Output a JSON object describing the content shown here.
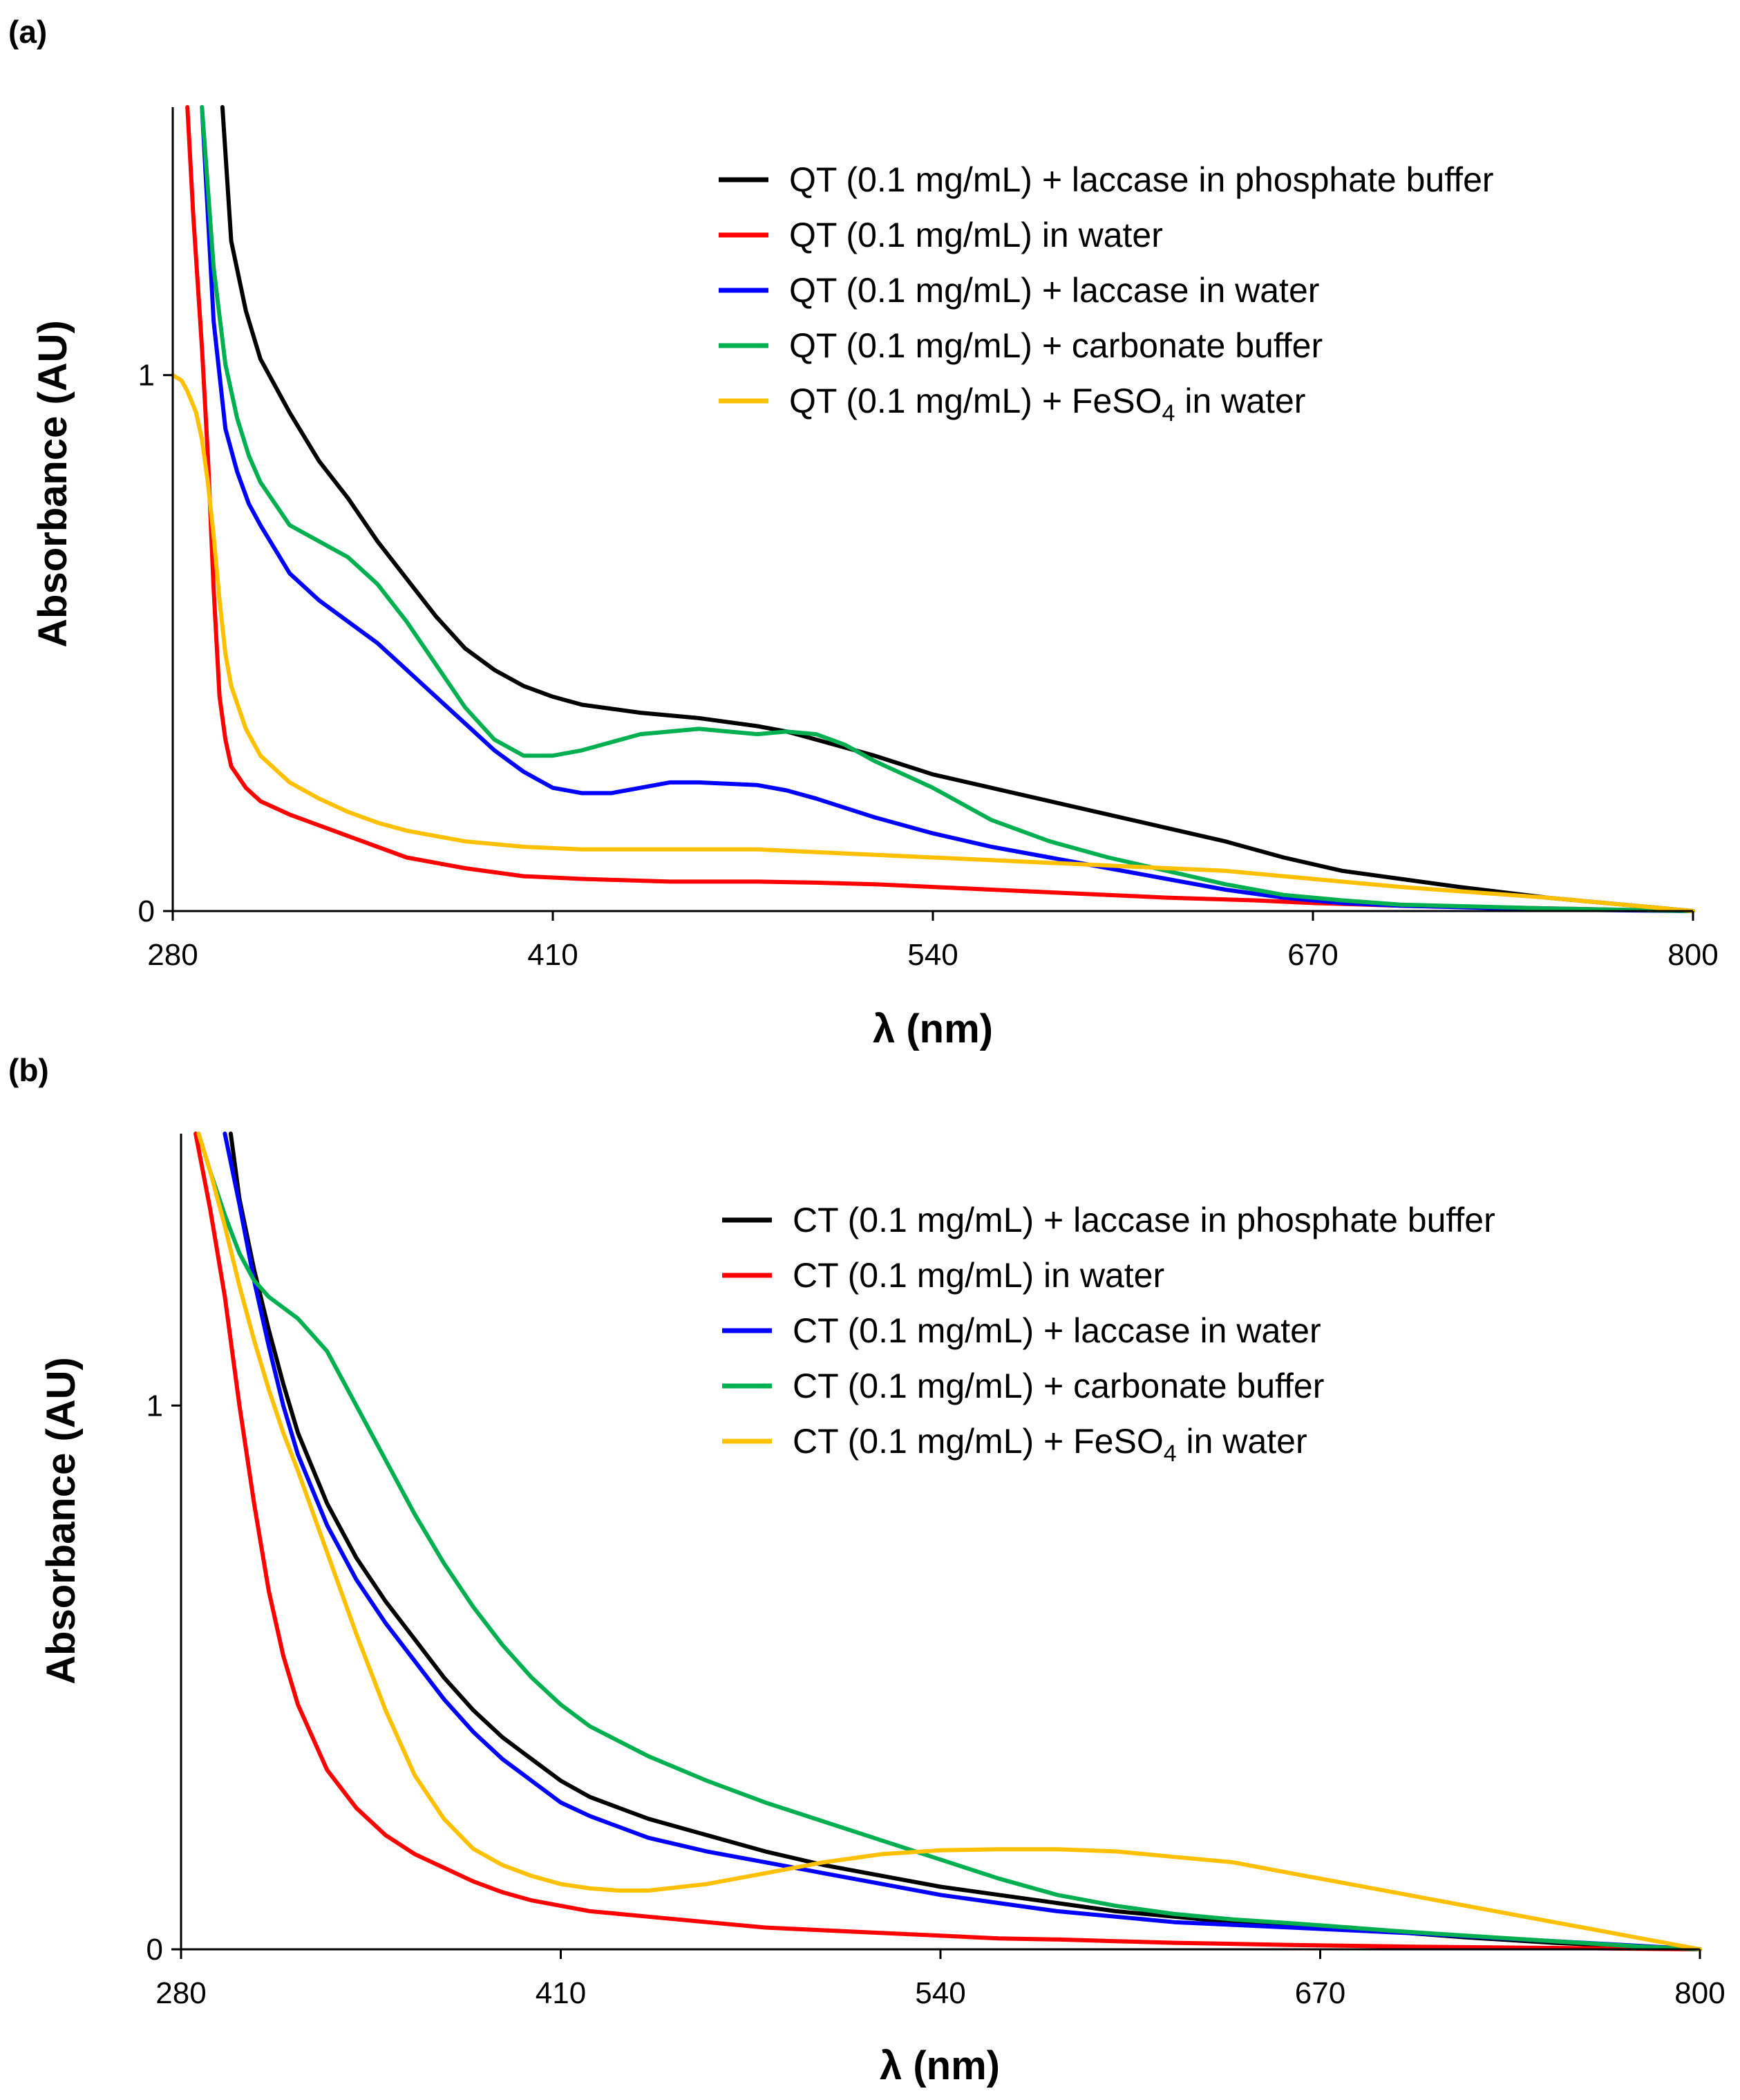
{
  "chart_data": [
    {
      "type": "line",
      "panel": "(a)",
      "xlabel": "λ (nm)",
      "ylabel": "Absorbance (AU)",
      "xlim": [
        280,
        800
      ],
      "ylim": [
        0,
        1.5
      ],
      "xticks": [
        "280",
        "410",
        "540",
        "670",
        "800"
      ],
      "yticks": [
        "0",
        "1"
      ],
      "legend_position": "top-right",
      "series": [
        {
          "name": "QT (0.1 mg/mL) + laccase in phosphate buffer",
          "color": "#000000",
          "x": [
            297,
            300,
            305,
            310,
            320,
            330,
            340,
            350,
            360,
            370,
            380,
            390,
            400,
            410,
            420,
            440,
            460,
            480,
            490,
            500,
            520,
            540,
            560,
            580,
            600,
            620,
            640,
            660,
            680,
            700,
            720,
            750,
            800
          ],
          "y": [
            1.5,
            1.25,
            1.12,
            1.03,
            0.93,
            0.84,
            0.77,
            0.69,
            0.62,
            0.55,
            0.49,
            0.45,
            0.42,
            0.4,
            0.385,
            0.37,
            0.36,
            0.345,
            0.335,
            0.32,
            0.29,
            0.255,
            0.23,
            0.205,
            0.18,
            0.155,
            0.13,
            0.1,
            0.075,
            0.06,
            0.045,
            0.025,
            0.0
          ]
        },
        {
          "name": "QT (0.1 mg/mL) in water",
          "color": "#ff0000",
          "x": [
            285,
            287,
            290,
            292,
            294,
            296,
            298,
            300,
            305,
            310,
            320,
            330,
            340,
            350,
            360,
            380,
            400,
            420,
            450,
            480,
            500,
            520,
            540,
            560,
            580,
            600,
            620,
            650,
            670,
            700,
            800
          ],
          "y": [
            1.5,
            1.3,
            1.05,
            0.85,
            0.6,
            0.4,
            0.32,
            0.27,
            0.23,
            0.205,
            0.18,
            0.16,
            0.14,
            0.12,
            0.1,
            0.08,
            0.065,
            0.06,
            0.055,
            0.055,
            0.053,
            0.05,
            0.045,
            0.04,
            0.035,
            0.03,
            0.025,
            0.02,
            0.015,
            0.01,
            0.0
          ]
        },
        {
          "name": "QT (0.1 mg/mL) + laccase in water",
          "color": "#0000ff",
          "x": [
            290,
            294,
            298,
            302,
            306,
            310,
            320,
            330,
            340,
            350,
            360,
            370,
            380,
            390,
            400,
            410,
            420,
            430,
            440,
            450,
            460,
            480,
            490,
            500,
            520,
            540,
            560,
            580,
            600,
            620,
            640,
            660,
            680,
            700,
            750,
            800
          ],
          "y": [
            1.5,
            1.1,
            0.9,
            0.82,
            0.76,
            0.72,
            0.63,
            0.58,
            0.54,
            0.5,
            0.45,
            0.4,
            0.35,
            0.3,
            0.26,
            0.23,
            0.22,
            0.22,
            0.23,
            0.24,
            0.24,
            0.235,
            0.225,
            0.21,
            0.175,
            0.145,
            0.12,
            0.1,
            0.08,
            0.06,
            0.04,
            0.025,
            0.015,
            0.01,
            0.003,
            0.0
          ]
        },
        {
          "name": "QT (0.1 mg/mL) + carbonate buffer",
          "color": "#00b050",
          "x": [
            290,
            294,
            298,
            302,
            306,
            310,
            320,
            330,
            340,
            350,
            360,
            370,
            380,
            390,
            400,
            410,
            420,
            440,
            460,
            480,
            490,
            500,
            510,
            520,
            540,
            560,
            580,
            600,
            620,
            640,
            660,
            680,
            700,
            750,
            800
          ],
          "y": [
            1.5,
            1.2,
            1.02,
            0.92,
            0.85,
            0.8,
            0.72,
            0.69,
            0.66,
            0.61,
            0.54,
            0.46,
            0.38,
            0.32,
            0.29,
            0.29,
            0.3,
            0.33,
            0.34,
            0.33,
            0.335,
            0.33,
            0.31,
            0.28,
            0.23,
            0.17,
            0.13,
            0.1,
            0.075,
            0.05,
            0.03,
            0.02,
            0.012,
            0.005,
            0.0
          ]
        },
        {
          "name": "QT (0.1 mg/mL) + FeSO4 in water",
          "color": "#ffc000",
          "x": [
            280,
            283,
            285,
            288,
            290,
            292,
            294,
            296,
            298,
            300,
            305,
            310,
            320,
            330,
            340,
            350,
            360,
            380,
            400,
            420,
            450,
            480,
            500,
            520,
            540,
            560,
            580,
            600,
            620,
            640,
            660,
            680,
            700,
            750,
            800
          ],
          "y": [
            1.0,
            0.99,
            0.97,
            0.93,
            0.88,
            0.8,
            0.7,
            0.58,
            0.48,
            0.42,
            0.34,
            0.29,
            0.24,
            0.21,
            0.185,
            0.165,
            0.15,
            0.13,
            0.12,
            0.115,
            0.115,
            0.115,
            0.11,
            0.105,
            0.1,
            0.095,
            0.09,
            0.085,
            0.08,
            0.075,
            0.065,
            0.055,
            0.045,
            0.025,
            0.0
          ]
        }
      ]
    },
    {
      "type": "line",
      "panel": "(b)",
      "xlabel": "λ (nm)",
      "ylabel": "Absorbance (AU)",
      "xlim": [
        280,
        800
      ],
      "ylim": [
        0,
        1.5
      ],
      "xticks": [
        "280",
        "410",
        "540",
        "670",
        "800"
      ],
      "yticks": [
        "0",
        "1"
      ],
      "legend_position": "top-right",
      "series": [
        {
          "name": "CT (0.1 mg/mL) + laccase in phosphate buffer",
          "color": "#000000",
          "x": [
            297,
            300,
            305,
            310,
            315,
            320,
            330,
            340,
            350,
            360,
            370,
            380,
            390,
            400,
            410,
            420,
            430,
            440,
            460,
            480,
            500,
            520,
            540,
            560,
            580,
            600,
            620,
            640,
            660,
            680,
            700,
            720,
            750,
            780,
            800
          ],
          "y": [
            1.5,
            1.38,
            1.25,
            1.14,
            1.04,
            0.95,
            0.82,
            0.72,
            0.64,
            0.57,
            0.5,
            0.44,
            0.39,
            0.35,
            0.31,
            0.28,
            0.26,
            0.24,
            0.21,
            0.18,
            0.155,
            0.135,
            0.115,
            0.1,
            0.085,
            0.07,
            0.06,
            0.05,
            0.045,
            0.04,
            0.03,
            0.022,
            0.012,
            0.005,
            0.0
          ]
        },
        {
          "name": "CT (0.1 mg/mL) in water",
          "color": "#ff0000",
          "x": [
            285,
            290,
            295,
            300,
            305,
            310,
            315,
            320,
            330,
            340,
            350,
            360,
            370,
            380,
            390,
            400,
            410,
            420,
            440,
            460,
            480,
            500,
            520,
            540,
            560,
            580,
            600,
            620,
            640,
            660,
            700,
            800
          ],
          "y": [
            1.5,
            1.36,
            1.2,
            1.0,
            0.82,
            0.66,
            0.54,
            0.45,
            0.33,
            0.26,
            0.21,
            0.175,
            0.15,
            0.125,
            0.105,
            0.09,
            0.08,
            0.07,
            0.06,
            0.05,
            0.04,
            0.035,
            0.03,
            0.025,
            0.02,
            0.018,
            0.015,
            0.012,
            0.01,
            0.008,
            0.005,
            0.0
          ]
        },
        {
          "name": "CT (0.1 mg/mL) + laccase in water",
          "color": "#0000ff",
          "x": [
            295,
            300,
            305,
            310,
            315,
            320,
            330,
            340,
            350,
            360,
            370,
            380,
            390,
            400,
            410,
            420,
            430,
            440,
            460,
            480,
            500,
            520,
            540,
            560,
            580,
            600,
            620,
            640,
            660,
            700,
            750,
            800
          ],
          "y": [
            1.5,
            1.37,
            1.23,
            1.11,
            1.0,
            0.91,
            0.78,
            0.68,
            0.6,
            0.53,
            0.46,
            0.4,
            0.35,
            0.31,
            0.27,
            0.245,
            0.225,
            0.205,
            0.18,
            0.16,
            0.14,
            0.12,
            0.1,
            0.085,
            0.07,
            0.06,
            0.05,
            0.045,
            0.04,
            0.03,
            0.015,
            0.0
          ]
        },
        {
          "name": "CT (0.1 mg/mL) + carbonate buffer",
          "color": "#00b050",
          "x": [
            286,
            290,
            295,
            300,
            305,
            310,
            320,
            330,
            340,
            350,
            360,
            370,
            380,
            390,
            400,
            410,
            420,
            440,
            460,
            480,
            500,
            520,
            540,
            560,
            580,
            600,
            620,
            640,
            660,
            680,
            700,
            720,
            750,
            780,
            800
          ],
          "y": [
            1.5,
            1.43,
            1.35,
            1.28,
            1.23,
            1.2,
            1.16,
            1.1,
            1.0,
            0.9,
            0.8,
            0.71,
            0.63,
            0.56,
            0.5,
            0.45,
            0.41,
            0.355,
            0.31,
            0.27,
            0.235,
            0.2,
            0.165,
            0.13,
            0.1,
            0.08,
            0.065,
            0.055,
            0.048,
            0.04,
            0.032,
            0.025,
            0.015,
            0.005,
            0.0
          ]
        },
        {
          "name": "CT (0.1 mg/mL) + FeSO4 in water",
          "color": "#ffc000",
          "x": [
            286,
            290,
            295,
            300,
            305,
            310,
            315,
            320,
            330,
            340,
            350,
            360,
            370,
            380,
            390,
            400,
            410,
            420,
            430,
            440,
            460,
            480,
            500,
            520,
            540,
            560,
            580,
            600,
            620,
            640,
            660,
            680,
            700,
            720,
            740,
            760,
            780,
            800
          ],
          "y": [
            1.5,
            1.43,
            1.33,
            1.22,
            1.12,
            1.03,
            0.95,
            0.88,
            0.73,
            0.58,
            0.44,
            0.32,
            0.24,
            0.185,
            0.155,
            0.135,
            0.12,
            0.112,
            0.108,
            0.108,
            0.12,
            0.14,
            0.16,
            0.175,
            0.182,
            0.184,
            0.184,
            0.18,
            0.17,
            0.16,
            0.14,
            0.12,
            0.1,
            0.08,
            0.06,
            0.04,
            0.02,
            0.0
          ]
        }
      ]
    }
  ]
}
